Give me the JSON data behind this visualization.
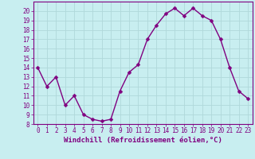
{
  "x": [
    0,
    1,
    2,
    3,
    4,
    5,
    6,
    7,
    8,
    9,
    10,
    11,
    12,
    13,
    14,
    15,
    16,
    17,
    18,
    19,
    20,
    21,
    22,
    23
  ],
  "y": [
    14,
    12,
    13,
    10,
    11,
    9,
    8.5,
    8.3,
    8.5,
    11.5,
    13.5,
    14.3,
    17,
    18.5,
    19.7,
    20.3,
    19.5,
    20.3,
    19.5,
    19,
    17,
    14,
    11.5,
    10.7
  ],
  "line_color": "#800080",
  "marker_color": "#800080",
  "bg_color": "#c8eef0",
  "grid_color": "#b0d8da",
  "xlabel": "Windchill (Refroidissement éolien,°C)",
  "xlabel_color": "#800080",
  "xlim": [
    -0.5,
    23.5
  ],
  "ylim": [
    8,
    21
  ],
  "yticks": [
    8,
    9,
    10,
    11,
    12,
    13,
    14,
    15,
    16,
    17,
    18,
    19,
    20
  ],
  "xticks": [
    0,
    1,
    2,
    3,
    4,
    5,
    6,
    7,
    8,
    9,
    10,
    11,
    12,
    13,
    14,
    15,
    16,
    17,
    18,
    19,
    20,
    21,
    22,
    23
  ],
  "tick_label_color": "#800080",
  "tick_label_fontsize": 5.5,
  "xlabel_fontsize": 6.5,
  "marker_size": 2.5,
  "line_width": 1.0,
  "spine_color": "#800080"
}
